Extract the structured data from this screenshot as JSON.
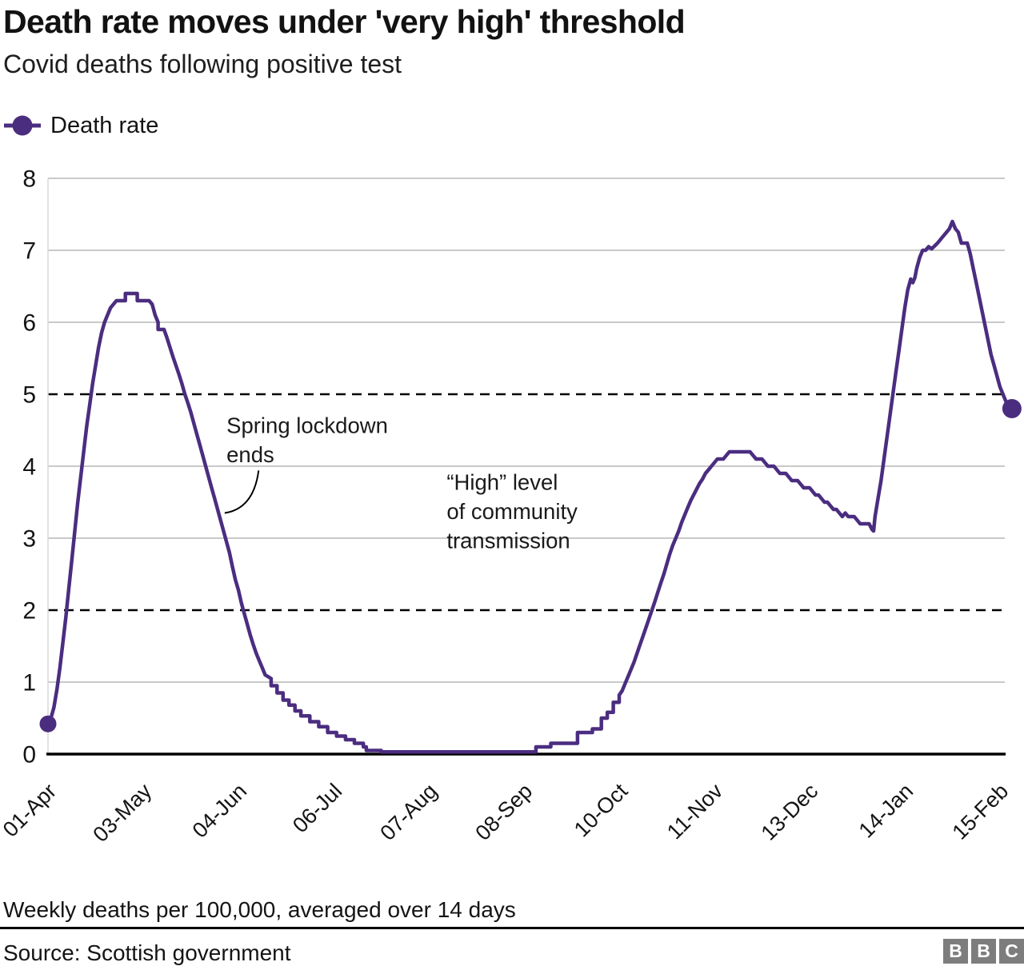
{
  "chart_data": {
    "type": "line",
    "title": "Death rate moves under 'very high' threshold",
    "subtitle": "Covid deaths following positive test",
    "xlabel": "",
    "ylabel": "",
    "ylim": [
      0,
      8
    ],
    "grid": "horizontal",
    "legend_position": "top-left",
    "y_ticks": [
      0,
      1,
      2,
      3,
      4,
      5,
      6,
      7,
      8
    ],
    "solid_gridlines": [
      1,
      3,
      4,
      6,
      7,
      8
    ],
    "dashed_thresholds": [
      2,
      5
    ],
    "x_tick_labels": [
      "01-Apr",
      "03-May",
      "04-Jun",
      "06-Jul",
      "07-Aug",
      "08-Sep",
      "10-Oct",
      "11-Nov",
      "13-Dec",
      "14-Jan",
      "15-Feb"
    ],
    "x_tick_days": [
      0,
      32,
      64,
      96,
      128,
      160,
      192,
      224,
      256,
      288,
      320
    ],
    "series": [
      {
        "name": "Death rate",
        "color": "#4b2d80",
        "points": [
          [
            0,
            0.42
          ],
          [
            1,
            0.5
          ],
          [
            2,
            0.65
          ],
          [
            3,
            0.9
          ],
          [
            4,
            1.2
          ],
          [
            5,
            1.55
          ],
          [
            6,
            1.9
          ],
          [
            7,
            2.3
          ],
          [
            8,
            2.7
          ],
          [
            9,
            3.1
          ],
          [
            10,
            3.5
          ],
          [
            11,
            3.85
          ],
          [
            12,
            4.2
          ],
          [
            13,
            4.55
          ],
          [
            14,
            4.85
          ],
          [
            15,
            5.15
          ],
          [
            16,
            5.4
          ],
          [
            17,
            5.65
          ],
          [
            18,
            5.85
          ],
          [
            19,
            6.0
          ],
          [
            20,
            6.1
          ],
          [
            21,
            6.2
          ],
          [
            22,
            6.25
          ],
          [
            23,
            6.3
          ],
          [
            26,
            6.3
          ],
          [
            26,
            6.4
          ],
          [
            30,
            6.4
          ],
          [
            30,
            6.3
          ],
          [
            34,
            6.3
          ],
          [
            35,
            6.25
          ],
          [
            36,
            6.1
          ],
          [
            37,
            6.0
          ],
          [
            37,
            5.9
          ],
          [
            39,
            5.9
          ],
          [
            40,
            5.78
          ],
          [
            41,
            5.65
          ],
          [
            42,
            5.52
          ],
          [
            43,
            5.4
          ],
          [
            44,
            5.28
          ],
          [
            45,
            5.15
          ],
          [
            46,
            5.0
          ],
          [
            47,
            4.88
          ],
          [
            48,
            4.75
          ],
          [
            49,
            4.6
          ],
          [
            50,
            4.45
          ],
          [
            51,
            4.3
          ],
          [
            52,
            4.15
          ],
          [
            53,
            4.0
          ],
          [
            54,
            3.85
          ],
          [
            55,
            3.7
          ],
          [
            56,
            3.55
          ],
          [
            57,
            3.4
          ],
          [
            58,
            3.25
          ],
          [
            59,
            3.1
          ],
          [
            60,
            2.95
          ],
          [
            61,
            2.8
          ],
          [
            62,
            2.6
          ],
          [
            63,
            2.42
          ],
          [
            64,
            2.28
          ],
          [
            65,
            2.1
          ],
          [
            66,
            1.95
          ],
          [
            67,
            1.8
          ],
          [
            68,
            1.65
          ],
          [
            69,
            1.52
          ],
          [
            70,
            1.4
          ],
          [
            71,
            1.3
          ],
          [
            72,
            1.2
          ],
          [
            73,
            1.1
          ],
          [
            75,
            1.05
          ],
          [
            75,
            0.95
          ],
          [
            77,
            0.95
          ],
          [
            77,
            0.85
          ],
          [
            79,
            0.85
          ],
          [
            79,
            0.75
          ],
          [
            81,
            0.75
          ],
          [
            81,
            0.68
          ],
          [
            83,
            0.68
          ],
          [
            83,
            0.6
          ],
          [
            85,
            0.6
          ],
          [
            85,
            0.53
          ],
          [
            88,
            0.53
          ],
          [
            88,
            0.45
          ],
          [
            91,
            0.45
          ],
          [
            91,
            0.38
          ],
          [
            94,
            0.38
          ],
          [
            94,
            0.3
          ],
          [
            97,
            0.3
          ],
          [
            97,
            0.25
          ],
          [
            100,
            0.25
          ],
          [
            100,
            0.2
          ],
          [
            103,
            0.2
          ],
          [
            103,
            0.15
          ],
          [
            106,
            0.15
          ],
          [
            106,
            0.1
          ],
          [
            107,
            0.1
          ],
          [
            107,
            0.05
          ],
          [
            112,
            0.05
          ],
          [
            112,
            0.03
          ],
          [
            164,
            0.03
          ],
          [
            164,
            0.1
          ],
          [
            169,
            0.1
          ],
          [
            169,
            0.15
          ],
          [
            178,
            0.15
          ],
          [
            178,
            0.3
          ],
          [
            183,
            0.3
          ],
          [
            183,
            0.35
          ],
          [
            186,
            0.35
          ],
          [
            186,
            0.5
          ],
          [
            188,
            0.5
          ],
          [
            188,
            0.58
          ],
          [
            190,
            0.58
          ],
          [
            190,
            0.72
          ],
          [
            192,
            0.72
          ],
          [
            192,
            0.82
          ],
          [
            193,
            0.88
          ],
          [
            194,
            0.98
          ],
          [
            195,
            1.08
          ],
          [
            196,
            1.18
          ],
          [
            197,
            1.28
          ],
          [
            198,
            1.4
          ],
          [
            199,
            1.52
          ],
          [
            200,
            1.64
          ],
          [
            201,
            1.76
          ],
          [
            202,
            1.88
          ],
          [
            203,
            2.0
          ],
          [
            204,
            2.12
          ],
          [
            205,
            2.25
          ],
          [
            206,
            2.38
          ],
          [
            207,
            2.5
          ],
          [
            208,
            2.64
          ],
          [
            209,
            2.78
          ],
          [
            210,
            2.9
          ],
          [
            211,
            3.0
          ],
          [
            212,
            3.1
          ],
          [
            213,
            3.22
          ],
          [
            214,
            3.32
          ],
          [
            215,
            3.42
          ],
          [
            216,
            3.52
          ],
          [
            217,
            3.6
          ],
          [
            218,
            3.68
          ],
          [
            219,
            3.76
          ],
          [
            220,
            3.82
          ],
          [
            221,
            3.9
          ],
          [
            222,
            3.95
          ],
          [
            223,
            4.0
          ],
          [
            224,
            4.05
          ],
          [
            225,
            4.1
          ],
          [
            227,
            4.1
          ],
          [
            228,
            4.15
          ],
          [
            229,
            4.2
          ],
          [
            236,
            4.2
          ],
          [
            237,
            4.15
          ],
          [
            238,
            4.1
          ],
          [
            240,
            4.1
          ],
          [
            241,
            4.05
          ],
          [
            242,
            4.0
          ],
          [
            244,
            4.0
          ],
          [
            245,
            3.95
          ],
          [
            246,
            3.9
          ],
          [
            248,
            3.9
          ],
          [
            249,
            3.85
          ],
          [
            250,
            3.8
          ],
          [
            252,
            3.8
          ],
          [
            253,
            3.75
          ],
          [
            254,
            3.7
          ],
          [
            256,
            3.7
          ],
          [
            257,
            3.65
          ],
          [
            258,
            3.6
          ],
          [
            259,
            3.6
          ],
          [
            260,
            3.55
          ],
          [
            261,
            3.5
          ],
          [
            262,
            3.5
          ],
          [
            263,
            3.45
          ],
          [
            264,
            3.4
          ],
          [
            265,
            3.4
          ],
          [
            266,
            3.35
          ],
          [
            267,
            3.3
          ],
          [
            268,
            3.35
          ],
          [
            269,
            3.3
          ],
          [
            271,
            3.3
          ],
          [
            272,
            3.25
          ],
          [
            273,
            3.2
          ],
          [
            276,
            3.2
          ],
          [
            277,
            3.12
          ],
          [
            277.5,
            3.1
          ],
          [
            278,
            3.3
          ],
          [
            279,
            3.55
          ],
          [
            280,
            3.8
          ],
          [
            281,
            4.1
          ],
          [
            282,
            4.4
          ],
          [
            283,
            4.7
          ],
          [
            284,
            5.0
          ],
          [
            285,
            5.3
          ],
          [
            286,
            5.6
          ],
          [
            287,
            5.9
          ],
          [
            288,
            6.2
          ],
          [
            289,
            6.45
          ],
          [
            290,
            6.6
          ],
          [
            290.7,
            6.55
          ],
          [
            291.4,
            6.62
          ],
          [
            292,
            6.75
          ],
          [
            293,
            6.9
          ],
          [
            294,
            7.0
          ],
          [
            295,
            7.0
          ],
          [
            296,
            7.05
          ],
          [
            297,
            7.02
          ],
          [
            298,
            7.06
          ],
          [
            299,
            7.1
          ],
          [
            300,
            7.15
          ],
          [
            301,
            7.2
          ],
          [
            302,
            7.25
          ],
          [
            303,
            7.3
          ],
          [
            304,
            7.4
          ],
          [
            305,
            7.3
          ],
          [
            306,
            7.25
          ],
          [
            307,
            7.1
          ],
          [
            309,
            7.1
          ],
          [
            310,
            6.95
          ],
          [
            311,
            6.75
          ],
          [
            312,
            6.55
          ],
          [
            313,
            6.35
          ],
          [
            314,
            6.15
          ],
          [
            315,
            5.95
          ],
          [
            316,
            5.75
          ],
          [
            317,
            5.55
          ],
          [
            318,
            5.4
          ],
          [
            319,
            5.25
          ],
          [
            320,
            5.1
          ],
          [
            321,
            5.0
          ],
          [
            322,
            4.9
          ],
          [
            323,
            4.83
          ],
          [
            324,
            4.8
          ]
        ]
      }
    ],
    "annotations": [
      {
        "id": "spring-lockdown",
        "lines": [
          "Spring lockdown",
          "ends"
        ],
        "x_day": 60,
        "y_value": 4.73,
        "arrow": {
          "from": [
            70.8,
            3.94
          ],
          "to": [
            59.4,
            3.35
          ]
        }
      },
      {
        "id": "high-level",
        "lines": [
          "“High” level",
          "of community",
          "transmission"
        ],
        "x_day": 134,
        "y_value": 3.94
      }
    ]
  },
  "footer": {
    "note": "Weekly deaths per 100,000, averaged over 14 days",
    "source": "Source: Scottish government",
    "logo_letters": [
      "B",
      "B",
      "C"
    ]
  },
  "colors": {
    "line": "#4b2d80",
    "gridline": "#c9c9c9",
    "threshold": "#000000",
    "text": "#141414"
  }
}
